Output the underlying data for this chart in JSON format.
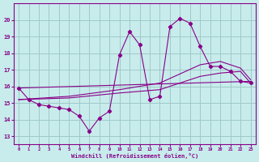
{
  "xlabel": "Windchill (Refroidissement éolien,°C)",
  "background_color": "#c8ecec",
  "grid_color": "#a0c8c8",
  "line_color": "#880088",
  "xlim": [
    -0.5,
    23.5
  ],
  "ylim": [
    12.5,
    21.0
  ],
  "yticks": [
    13,
    14,
    15,
    16,
    17,
    18,
    19,
    20
  ],
  "xticks": [
    0,
    1,
    2,
    3,
    4,
    5,
    6,
    7,
    8,
    9,
    10,
    11,
    12,
    13,
    14,
    15,
    16,
    17,
    18,
    19,
    20,
    21,
    22,
    23
  ],
  "series1_x": [
    0,
    1,
    2,
    3,
    4,
    5,
    6,
    7,
    8,
    9,
    10,
    11,
    12,
    13,
    14,
    15,
    16,
    17,
    18,
    19,
    20,
    21,
    22,
    23
  ],
  "series1_y": [
    15.9,
    15.2,
    14.9,
    14.8,
    14.7,
    14.6,
    14.2,
    13.3,
    14.1,
    14.5,
    17.9,
    19.3,
    18.5,
    15.2,
    15.4,
    19.6,
    20.1,
    19.8,
    18.4,
    17.2,
    17.2,
    16.9,
    16.3,
    16.2
  ],
  "trend1_x": [
    0,
    5,
    10,
    14,
    18,
    20,
    22,
    23
  ],
  "trend1_y": [
    15.2,
    15.3,
    15.6,
    15.8,
    16.6,
    16.8,
    16.9,
    16.2
  ],
  "trend2_x": [
    0,
    5,
    10,
    14,
    18,
    20,
    22,
    23
  ],
  "trend2_y": [
    15.2,
    15.4,
    15.8,
    16.2,
    17.3,
    17.5,
    17.1,
    16.4
  ],
  "trend3_x": [
    0,
    23
  ],
  "trend3_y": [
    15.9,
    16.3
  ]
}
